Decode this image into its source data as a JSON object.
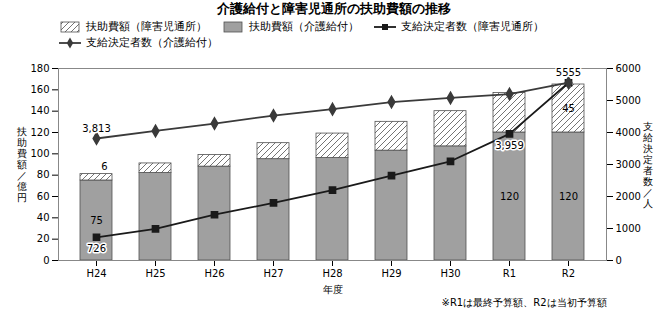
{
  "chart_data": {
    "type": "bar",
    "stacked": true,
    "title": "介護給付と障害児通所の扶助費額の推移",
    "xlabel": "年度",
    "ylabel": "扶\n助\n費\n額\n／\n億\n円",
    "y2label": "支\n給\n決\n定\n者\n数\n／\n人",
    "note": "※R1は最終予算額、R2は当初予算額",
    "categories": [
      "H24",
      "H25",
      "H26",
      "H27",
      "H28",
      "H29",
      "H30",
      "R1",
      "R2"
    ],
    "series": [
      {
        "name": "扶助費額（介護給付）",
        "type": "bar",
        "color": "#a0a0a0",
        "values": [
          75,
          82,
          88,
          95,
          96,
          103,
          107,
          120,
          120
        ]
      },
      {
        "name": "扶助費額（障害児通所）",
        "type": "bar",
        "color": "#ffffff",
        "values": [
          6,
          9,
          11,
          15,
          23,
          27,
          33,
          37,
          45
        ]
      },
      {
        "name": "支給決定者数（障害児通所）",
        "type": "line",
        "axis": "y2",
        "color": "#1a1a1a",
        "marker": "square",
        "values": [
          726,
          990,
          1430,
          1800,
          2200,
          2650,
          3100,
          3959,
          5555
        ]
      },
      {
        "name": "支給決定者数（介護給付）",
        "type": "line",
        "axis": "y2",
        "color": "#3a3a3a",
        "marker": "diamond",
        "values": [
          3813,
          4050,
          4280,
          4530,
          4730,
          4950,
          5080,
          5200,
          5555
        ]
      }
    ],
    "ylim": [
      0,
      180
    ],
    "yticks": [
      0,
      20,
      40,
      60,
      80,
      100,
      120,
      140,
      160,
      180
    ],
    "y2lim": [
      0,
      6000
    ],
    "y2ticks": [
      0,
      1000,
      2000,
      3000,
      4000,
      5000,
      6000
    ],
    "legend": "upper left",
    "annotations": [
      {
        "text": "75",
        "series": "扶助費額（介護給付）",
        "category": "H24"
      },
      {
        "text": "6",
        "series": "扶助費額（障害児通所）",
        "category": "H24"
      },
      {
        "text": "120",
        "series": "扶助費額（介護給付）",
        "category": "R1"
      },
      {
        "text": "45",
        "series": "扶助費額（障害児通所）",
        "category": "R2"
      },
      {
        "text": "120",
        "series": "扶助費額（介護給付）",
        "category": "R2"
      },
      {
        "text": "726",
        "series": "支給決定者数（障害児通所）",
        "category": "H24"
      },
      {
        "text": "3,959",
        "series": "支給決定者数（障害児通所）",
        "category": "R1"
      },
      {
        "text": "3,813",
        "series": "支給決定者数（介護給付）",
        "category": "H24"
      },
      {
        "text": "5555",
        "series": "支給決定者数（介護給付）",
        "category": "R2"
      }
    ]
  }
}
